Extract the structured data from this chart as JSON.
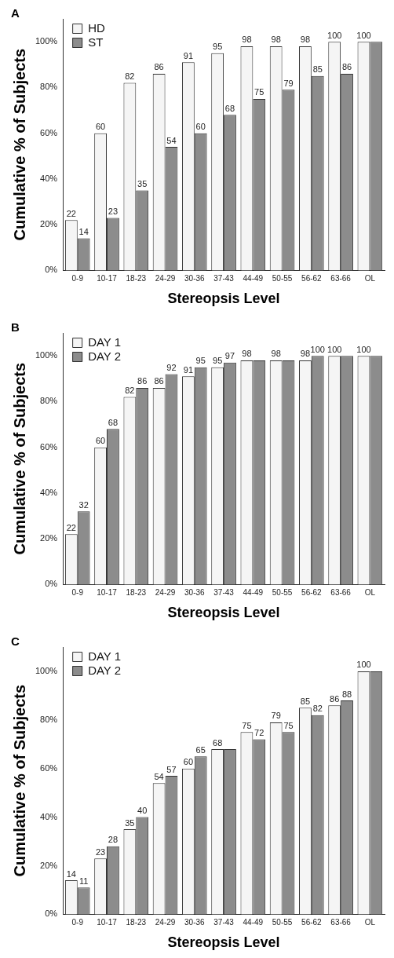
{
  "chart_data": [
    {
      "type": "bar",
      "title": "A",
      "xlabel": "Stereopsis Level",
      "ylabel": "Cumulative % of Subjects",
      "categories": [
        "0-9",
        "10-17",
        "18-23",
        "24-29",
        "30-36",
        "37-43",
        "44-49",
        "50-55",
        "56-62",
        "63-66",
        "OL"
      ],
      "series": [
        {
          "name": "HD",
          "color": "#f5f5f5",
          "values": [
            22,
            60,
            82,
            86,
            91,
            95,
            98,
            98,
            98,
            100,
            100
          ],
          "value_labels": [
            "22",
            "60",
            "82",
            "86",
            "91",
            "95",
            "98",
            "98",
            "98",
            "100",
            "100"
          ]
        },
        {
          "name": "ST",
          "color": "#8c8c8c",
          "values": [
            14,
            23,
            35,
            54,
            60,
            68,
            75,
            79,
            85,
            86,
            100
          ],
          "value_labels": [
            "14",
            "23",
            "35",
            "54",
            "60",
            "68",
            "75",
            "79",
            "85",
            "86",
            null
          ]
        }
      ],
      "ylim": [
        0,
        110
      ],
      "yticks": [
        {
          "value": 0,
          "label": "0%"
        },
        {
          "value": 20,
          "label": "20%"
        },
        {
          "value": 40,
          "label": "40%"
        },
        {
          "value": 60,
          "label": "60%"
        },
        {
          "value": 80,
          "label": "80%"
        },
        {
          "value": 100,
          "label": "100%"
        }
      ],
      "grid": false,
      "legend": "top left"
    },
    {
      "type": "bar",
      "title": "B",
      "xlabel": "Stereopsis Level",
      "ylabel": "Cumulative % of Subjects",
      "categories": [
        "0-9",
        "10-17",
        "18-23",
        "24-29",
        "30-36",
        "37-43",
        "44-49",
        "50-55",
        "56-62",
        "63-66",
        "OL"
      ],
      "series": [
        {
          "name": "DAY 1",
          "color": "#f5f5f5",
          "values": [
            22,
            60,
            82,
            86,
            91,
            95,
            98,
            98,
            98,
            100,
            100
          ],
          "value_labels": [
            "22",
            "60",
            "82",
            "86",
            "91",
            "95",
            "98",
            "98",
            "98",
            "100",
            "100"
          ]
        },
        {
          "name": "DAY 2",
          "color": "#8c8c8c",
          "values": [
            32,
            68,
            86,
            92,
            95,
            97,
            98,
            98,
            100,
            100,
            100
          ],
          "value_labels": [
            "32",
            "68",
            "86",
            "92",
            "95",
            "97",
            null,
            null,
            "100",
            null,
            null
          ]
        }
      ],
      "ylim": [
        0,
        110
      ],
      "yticks": [
        {
          "value": 0,
          "label": "0%"
        },
        {
          "value": 20,
          "label": "20%"
        },
        {
          "value": 40,
          "label": "40%"
        },
        {
          "value": 60,
          "label": "60%"
        },
        {
          "value": 80,
          "label": "80%"
        },
        {
          "value": 100,
          "label": "100%"
        }
      ],
      "grid": false,
      "legend": "top left"
    },
    {
      "type": "bar",
      "title": "C",
      "xlabel": "Stereopsis Level",
      "ylabel": "Cumulative % of Subjects",
      "categories": [
        "0-9",
        "10-17",
        "18-23",
        "24-29",
        "30-36",
        "37-43",
        "44-49",
        "50-55",
        "56-62",
        "63-66",
        "OL"
      ],
      "series": [
        {
          "name": "DAY 1",
          "color": "#f5f5f5",
          "values": [
            14,
            23,
            35,
            54,
            60,
            68,
            75,
            79,
            85,
            86,
            100
          ],
          "value_labels": [
            "14",
            "23",
            "35",
            "54",
            "60",
            "68",
            "75",
            "79",
            "85",
            "86",
            "100"
          ]
        },
        {
          "name": "DAY 2",
          "color": "#8c8c8c",
          "values": [
            11,
            28,
            40,
            57,
            65,
            68,
            72,
            75,
            82,
            88,
            100
          ],
          "value_labels": [
            "11",
            "28",
            "40",
            "57",
            "65",
            null,
            "72",
            "75",
            "82",
            "88",
            null
          ]
        }
      ],
      "ylim": [
        0,
        110
      ],
      "yticks": [
        {
          "value": 0,
          "label": "0%"
        },
        {
          "value": 20,
          "label": "20%"
        },
        {
          "value": 40,
          "label": "40%"
        },
        {
          "value": 60,
          "label": "60%"
        },
        {
          "value": 80,
          "label": "80%"
        },
        {
          "value": 100,
          "label": "100%"
        }
      ],
      "grid": false,
      "legend": "top left"
    }
  ]
}
